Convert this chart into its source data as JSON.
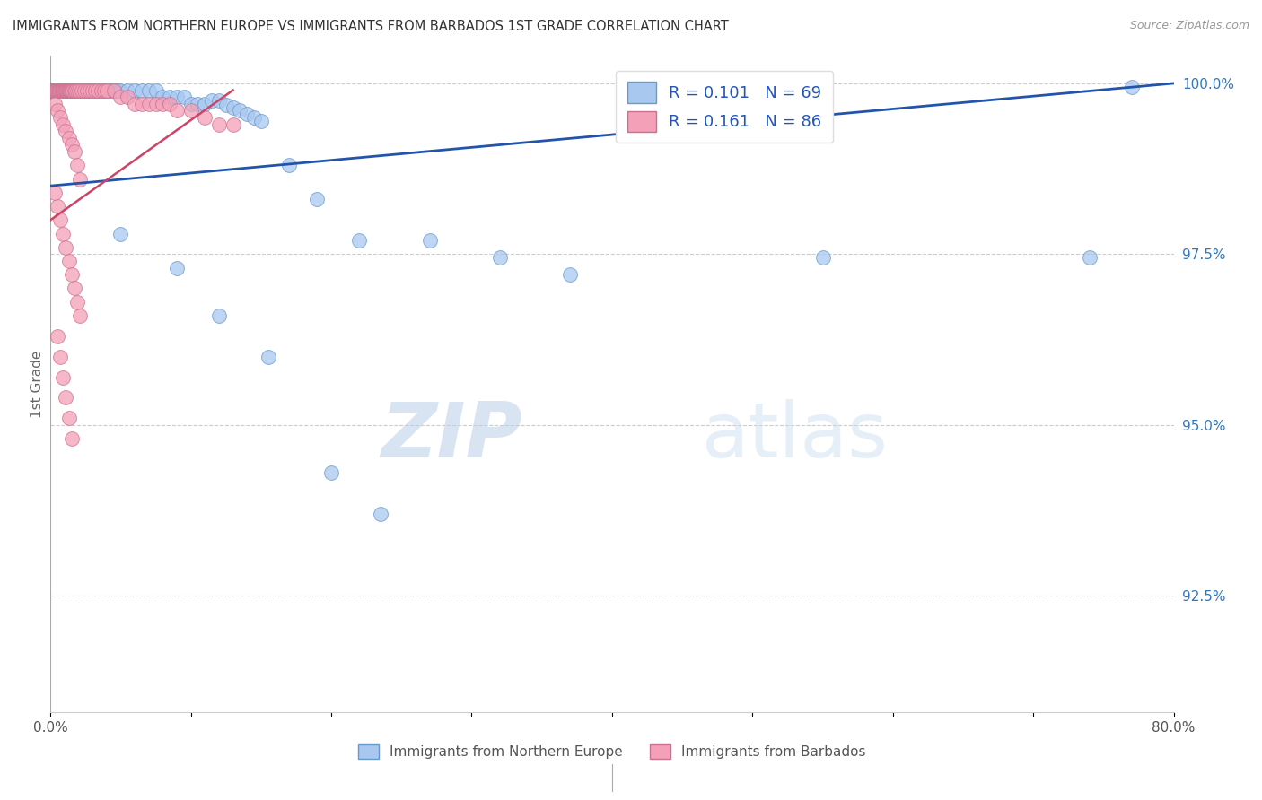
{
  "title": "IMMIGRANTS FROM NORTHERN EUROPE VS IMMIGRANTS FROM BARBADOS 1ST GRADE CORRELATION CHART",
  "source": "Source: ZipAtlas.com",
  "ylabel": "1st Grade",
  "legend_label_blue": "Immigrants from Northern Europe",
  "legend_label_pink": "Immigrants from Barbados",
  "legend_r_blue": "R = 0.101",
  "legend_n_blue": "N = 69",
  "legend_r_pink": "R = 0.161",
  "legend_n_pink": "N = 86",
  "xlim": [
    0.0,
    0.8
  ],
  "ylim": [
    0.908,
    1.004
  ],
  "color_blue": "#a8c8f0",
  "color_pink": "#f4a0b8",
  "edge_blue": "#6699cc",
  "edge_pink": "#cc7090",
  "trend_color_blue": "#2255aa",
  "trend_color_pink": "#cc4466",
  "watermark_zip": "ZIP",
  "watermark_atlas": "atlas",
  "blue_scatter_x": [
    0.001,
    0.002,
    0.003,
    0.004,
    0.005,
    0.006,
    0.007,
    0.008,
    0.009,
    0.01,
    0.011,
    0.012,
    0.013,
    0.014,
    0.015,
    0.016,
    0.017,
    0.018,
    0.019,
    0.02,
    0.021,
    0.022,
    0.023,
    0.024,
    0.025,
    0.026,
    0.027,
    0.028,
    0.029,
    0.03,
    0.032,
    0.034,
    0.036,
    0.038,
    0.04,
    0.042,
    0.044,
    0.046,
    0.048,
    0.05,
    0.055,
    0.06,
    0.065,
    0.07,
    0.075,
    0.08,
    0.085,
    0.09,
    0.095,
    0.1,
    0.105,
    0.11,
    0.115,
    0.12,
    0.125,
    0.13,
    0.135,
    0.14,
    0.145,
    0.15,
    0.17,
    0.19,
    0.22,
    0.27,
    0.32,
    0.37,
    0.55,
    0.74,
    0.77
  ],
  "blue_scatter_y": [
    0.999,
    0.999,
    0.999,
    0.999,
    0.999,
    0.999,
    0.999,
    0.999,
    0.999,
    0.999,
    0.999,
    0.999,
    0.999,
    0.999,
    0.999,
    0.999,
    0.999,
    0.999,
    0.999,
    0.999,
    0.999,
    0.999,
    0.999,
    0.999,
    0.999,
    0.999,
    0.999,
    0.999,
    0.999,
    0.999,
    0.999,
    0.999,
    0.999,
    0.999,
    0.999,
    0.999,
    0.999,
    0.999,
    0.999,
    0.999,
    0.999,
    0.999,
    0.999,
    0.999,
    0.999,
    0.998,
    0.998,
    0.998,
    0.998,
    0.997,
    0.997,
    0.997,
    0.9975,
    0.9975,
    0.9968,
    0.9965,
    0.996,
    0.9955,
    0.995,
    0.9945,
    0.988,
    0.983,
    0.977,
    0.977,
    0.9745,
    0.972,
    0.9745,
    0.9745,
    0.9995
  ],
  "blue_outlier_x": [
    0.05,
    0.09,
    0.12,
    0.155,
    0.2,
    0.235
  ],
  "blue_outlier_y": [
    0.978,
    0.973,
    0.966,
    0.96,
    0.943,
    0.937
  ],
  "pink_scatter_x": [
    0.0005,
    0.001,
    0.0015,
    0.002,
    0.0025,
    0.003,
    0.0035,
    0.004,
    0.0045,
    0.005,
    0.0055,
    0.006,
    0.0065,
    0.007,
    0.0075,
    0.008,
    0.0085,
    0.009,
    0.0095,
    0.01,
    0.0105,
    0.011,
    0.0115,
    0.012,
    0.0125,
    0.013,
    0.0135,
    0.014,
    0.0145,
    0.015,
    0.016,
    0.017,
    0.018,
    0.019,
    0.02,
    0.022,
    0.024,
    0.026,
    0.028,
    0.03,
    0.032,
    0.034,
    0.036,
    0.038,
    0.04,
    0.045,
    0.05,
    0.055,
    0.06,
    0.065,
    0.07,
    0.075,
    0.08,
    0.085,
    0.09,
    0.1,
    0.11,
    0.12,
    0.13,
    0.003,
    0.005,
    0.007,
    0.009,
    0.011,
    0.013,
    0.015,
    0.017,
    0.019,
    0.021,
    0.003,
    0.005,
    0.007,
    0.009,
    0.011,
    0.013,
    0.015,
    0.017,
    0.019,
    0.021,
    0.005,
    0.007,
    0.009,
    0.011,
    0.013,
    0.015
  ],
  "pink_scatter_y": [
    0.999,
    0.999,
    0.999,
    0.999,
    0.999,
    0.999,
    0.999,
    0.999,
    0.999,
    0.999,
    0.999,
    0.999,
    0.999,
    0.999,
    0.999,
    0.999,
    0.999,
    0.999,
    0.999,
    0.999,
    0.999,
    0.999,
    0.999,
    0.999,
    0.999,
    0.999,
    0.999,
    0.999,
    0.999,
    0.999,
    0.999,
    0.999,
    0.999,
    0.999,
    0.999,
    0.999,
    0.999,
    0.999,
    0.999,
    0.999,
    0.999,
    0.999,
    0.999,
    0.999,
    0.999,
    0.999,
    0.998,
    0.998,
    0.997,
    0.997,
    0.997,
    0.997,
    0.997,
    0.997,
    0.996,
    0.996,
    0.995,
    0.994,
    0.994,
    0.997,
    0.996,
    0.995,
    0.994,
    0.993,
    0.992,
    0.991,
    0.99,
    0.988,
    0.986,
    0.984,
    0.982,
    0.98,
    0.978,
    0.976,
    0.974,
    0.972,
    0.97,
    0.968,
    0.966,
    0.963,
    0.96,
    0.957,
    0.954,
    0.951,
    0.948
  ]
}
